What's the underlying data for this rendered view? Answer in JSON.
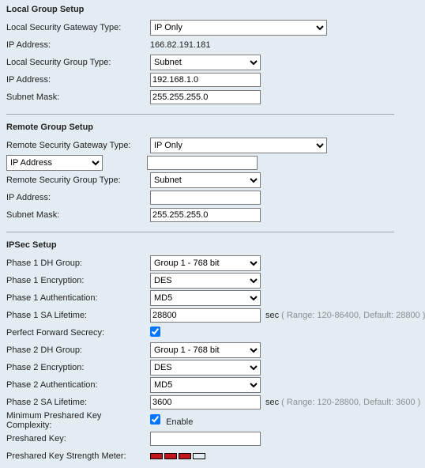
{
  "local": {
    "title": "Local Group Setup",
    "gatewayTypeLabel": "Local Security Gateway Type:",
    "gatewayType": "IP Only",
    "ipAddressLabel": "IP Address:",
    "ipAddress": "166.82.191.181",
    "groupTypeLabel": "Local Security Group Type:",
    "groupType": "Subnet",
    "ipAddress2Label": "IP Address:",
    "ipAddress2": "192.168.1.0",
    "subnetMaskLabel": "Subnet Mask:",
    "subnetMask": "255.255.255.0"
  },
  "remote": {
    "title": "Remote Group Setup",
    "gatewayTypeLabel": "Remote Security Gateway Type:",
    "gatewayType": "IP Only",
    "addrModeLabel": "IP Address",
    "addrValue": "",
    "groupTypeLabel": "Remote Security Group Type:",
    "groupType": "Subnet",
    "ipAddressLabel": "IP Address:",
    "ipAddress": "",
    "subnetMaskLabel": "Subnet Mask:",
    "subnetMask": "255.255.255.0"
  },
  "ipsec": {
    "title": "IPSec Setup",
    "p1dhLabel": "Phase 1 DH Group:",
    "p1dh": "Group 1 - 768 bit",
    "p1encLabel": "Phase 1 Encryption:",
    "p1enc": "DES",
    "p1authLabel": "Phase 1 Authentication:",
    "p1auth": "MD5",
    "p1saLabel": "Phase 1 SA Lifetime:",
    "p1sa": "28800",
    "p1saHintUnit": "sec",
    "p1saHint": " ( Range: 120-86400, Default: 28800 )",
    "pfsLabel": "Perfect Forward Secrecy:",
    "p2dhLabel": "Phase 2 DH Group:",
    "p2dh": "Group 1 - 768 bit",
    "p2encLabel": "Phase 2 Encryption:",
    "p2enc": "DES",
    "p2authLabel": "Phase 2 Authentication:",
    "p2auth": "MD5",
    "p2saLabel": "Phase 2 SA Lifetime:",
    "p2sa": "3600",
    "p2saHintUnit": "sec",
    "p2saHint": " ( Range: 120-28800, Default: 3600 )",
    "minPskLabel": "Minimum Preshared Key Complexity:",
    "minPskEnable": "Enable",
    "pskLabel": "Preshared Key:",
    "psk": "",
    "meterLabel": "Preshared Key Strength Meter:",
    "meterColors": [
      "#c1161c",
      "#c1161c",
      "#c1161c",
      "#e3ecf3"
    ]
  }
}
